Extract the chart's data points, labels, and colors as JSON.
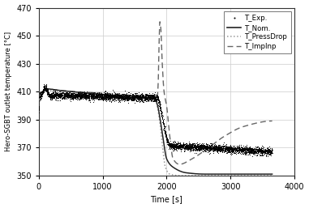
{
  "title": "",
  "xlabel": "Time [s]",
  "ylabel": "Hero-SGBT outlet temperature [°C]",
  "xlim": [
    0,
    4000
  ],
  "ylim": [
    350,
    470
  ],
  "yticks": [
    350,
    370,
    390,
    410,
    430,
    450,
    470
  ],
  "xticks": [
    0,
    1000,
    2000,
    3000,
    4000
  ],
  "bg_color": "#ffffff",
  "grid_color": "#cccccc",
  "exp_color": "#000000",
  "nom_color": "#222222",
  "pressdrop_color": "#999999",
  "impinp_color": "#666666",
  "legend_labels": [
    "T_Exp.",
    "T_Nom.",
    "T_PressDrop",
    "T_ImpInp"
  ],
  "nom_keypoints_t": [
    0,
    50,
    120,
    300,
    1000,
    1800,
    1830,
    1860,
    1900,
    1950,
    2000,
    2100,
    2300,
    2600,
    3000,
    3650
  ],
  "nom_keypoints_y": [
    405,
    408,
    412,
    411,
    408,
    405,
    404,
    400,
    390,
    375,
    362,
    356,
    352,
    351,
    351,
    351
  ],
  "pres_keypoints_t": [
    0,
    50,
    120,
    300,
    1000,
    1800,
    1830,
    1860,
    1900,
    1940,
    1980,
    2050,
    2200,
    2600,
    3000,
    3650
  ],
  "pres_keypoints_y": [
    404,
    407,
    411,
    410,
    407,
    404,
    403,
    398,
    386,
    369,
    356,
    351,
    350,
    350,
    350,
    350
  ],
  "imp_keypoints_t": [
    0,
    50,
    120,
    300,
    1800,
    1840,
    1855,
    1870,
    1880,
    1895,
    1910,
    1930,
    1960,
    2000,
    2050,
    2100,
    2200,
    2400,
    2600,
    2900,
    3200,
    3650
  ],
  "imp_keypoints_y": [
    405,
    408,
    412,
    411,
    405,
    404,
    406,
    418,
    440,
    460,
    455,
    432,
    410,
    400,
    378,
    362,
    358,
    362,
    368,
    378,
    385,
    389
  ],
  "exp_base_early": 405,
  "exp_spike_t": 100,
  "exp_spike_val": 415,
  "exp_plateau": 405,
  "exp_drop_start": 1840,
  "exp_drop_end": 2050,
  "exp_post_start_val": 371,
  "exp_post_slope": -0.0028,
  "exp_noise_std": 1.3
}
